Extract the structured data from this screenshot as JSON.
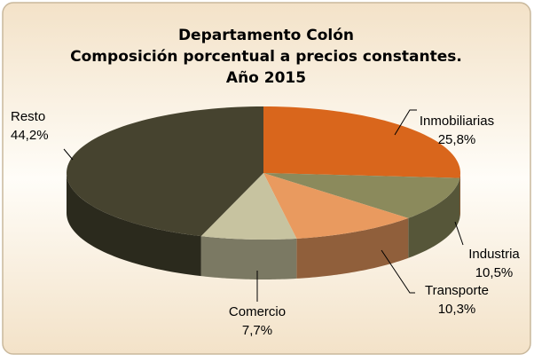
{
  "chart_data": {
    "type": "pie3d",
    "title": [
      "Departamento Colón",
      "Composición porcentual a precios constantes.",
      "Año 2015"
    ],
    "categories": [
      "Inmobiliarias",
      "Industria",
      "Transporte",
      "Comercio",
      "Resto"
    ],
    "values": [
      25.8,
      10.5,
      10.3,
      7.7,
      44.2
    ],
    "value_labels": [
      "25,8%",
      "10,5%",
      "10,3%",
      "7,7%",
      "44,2%"
    ],
    "colors": [
      "#d9661c",
      "#8b8a5c",
      "#e99a5f",
      "#c7c3a0",
      "#46432f"
    ]
  }
}
